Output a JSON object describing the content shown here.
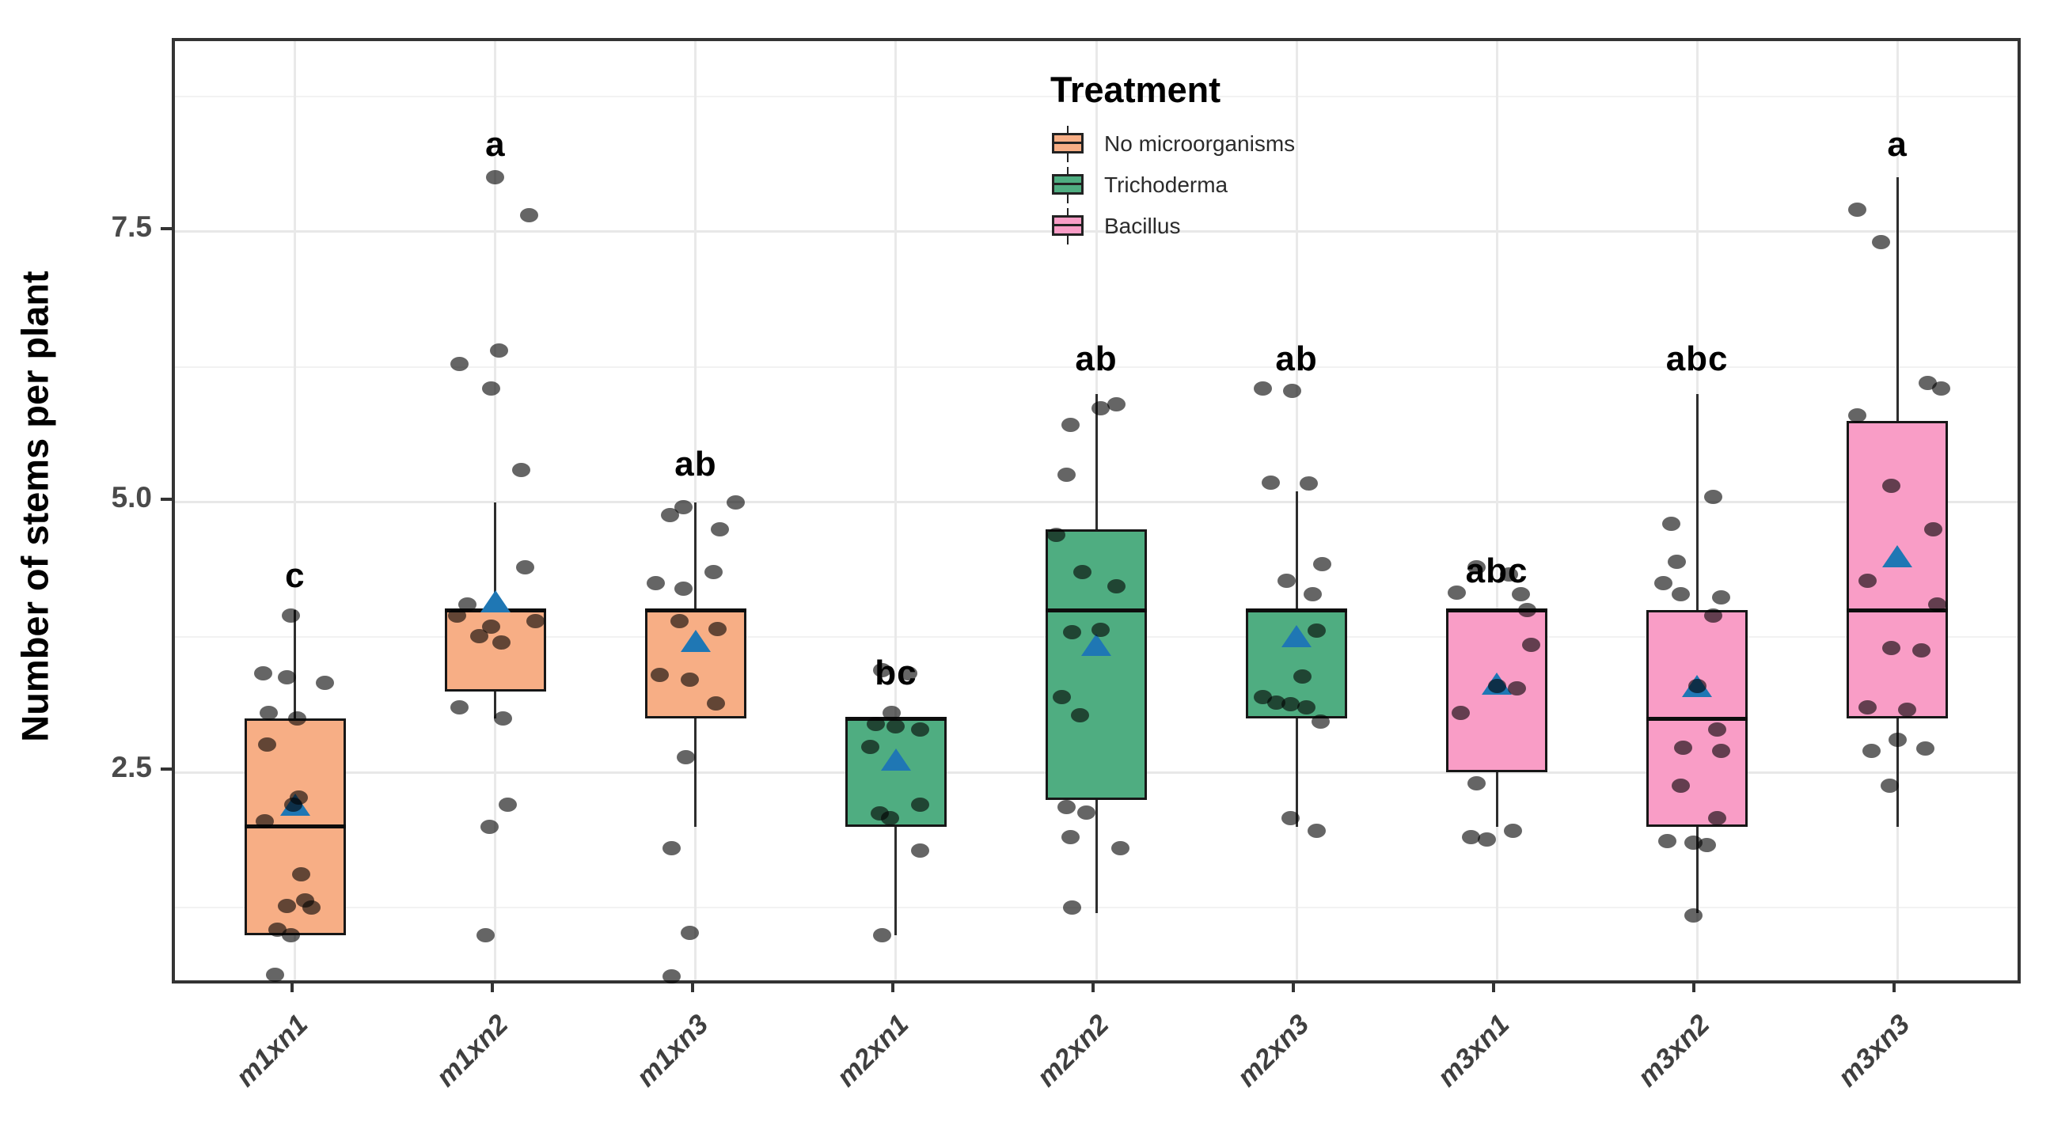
{
  "figure": {
    "y_axis": {
      "title": "Number of stems per plant",
      "tick_labels": [
        "2.5",
        "5.0",
        "7.5"
      ],
      "tick_values": [
        2.5,
        5.0,
        7.5
      ]
    },
    "legend": {
      "title": "Treatment",
      "items": [
        {
          "label": "No microorganisms",
          "color": "#F7AE85"
        },
        {
          "label": "Trichoderma",
          "color": "#4FAD81"
        },
        {
          "label": "Bacillus",
          "color": "#F99DC6"
        }
      ]
    }
  },
  "chart_data": {
    "type": "boxplot",
    "title": "",
    "xlabel": "",
    "ylabel": "Number of stems per plant",
    "ylim": [
      0.58,
      9.26
    ],
    "y_major_gridlines": [
      2.5,
      5.0,
      7.5
    ],
    "y_minor_gridlines": [
      1.25,
      3.75,
      6.25,
      8.75
    ],
    "grid": true,
    "legend_position": "inside-top-center",
    "legend_title": "Treatment",
    "mean_marker": {
      "shape": "triangle-up",
      "color": "#1f77b4"
    },
    "point_style": {
      "color": "#4a4a4a",
      "alpha": 0.85
    },
    "categories": [
      "m1xn1",
      "m1xn2",
      "m1xn3",
      "m2xn1",
      "m2xn2",
      "m2xn3",
      "m3xn1",
      "m3xn2",
      "m3xn3"
    ],
    "groups": [
      {
        "category": "m1xn1",
        "treatment": "No microorganisms",
        "letter": "c",
        "letter_y": 4.32,
        "q1": 1.0,
        "median": 2.0,
        "q3": 3.0,
        "whisker_low": 1.0,
        "whisker_high": 4.0,
        "mean": 2.2,
        "points": [
          [
            3.95,
            -0.02
          ],
          [
            3.42,
            -0.16
          ],
          [
            3.38,
            -0.04
          ],
          [
            3.33,
            0.15
          ],
          [
            3.05,
            -0.13
          ],
          [
            3.0,
            0.01
          ],
          [
            2.76,
            -0.14
          ],
          [
            2.27,
            0.02
          ],
          [
            2.2,
            -0.01
          ],
          [
            2.05,
            -0.15
          ],
          [
            1.56,
            0.03
          ],
          [
            1.32,
            0.05
          ],
          [
            1.27,
            -0.04
          ],
          [
            1.25,
            0.08
          ],
          [
            1.05,
            -0.09
          ],
          [
            1.0,
            -0.02
          ],
          [
            0.63,
            -0.1
          ]
        ]
      },
      {
        "category": "m1xn2",
        "treatment": "No microorganisms",
        "letter": "a",
        "letter_y": 8.3,
        "q1": 3.25,
        "median": 4.0,
        "q3": 4.0,
        "whisker_low": 3.0,
        "whisker_high": 5.0,
        "mean": 4.08,
        "points": [
          [
            8.0,
            0.0
          ],
          [
            7.65,
            0.17
          ],
          [
            6.4,
            0.02
          ],
          [
            6.28,
            -0.18
          ],
          [
            6.05,
            -0.02
          ],
          [
            5.3,
            0.13
          ],
          [
            4.4,
            0.15
          ],
          [
            4.05,
            -0.14
          ],
          [
            3.95,
            -0.19
          ],
          [
            3.9,
            0.2
          ],
          [
            3.85,
            -0.02
          ],
          [
            3.76,
            -0.08
          ],
          [
            3.7,
            0.03
          ],
          [
            3.1,
            -0.18
          ],
          [
            3.0,
            0.04
          ],
          [
            2.2,
            0.06
          ],
          [
            2.0,
            -0.03
          ],
          [
            1.0,
            -0.05
          ]
        ]
      },
      {
        "category": "m1xn3",
        "treatment": "No microorganisms",
        "letter": "ab",
        "letter_y": 5.35,
        "q1": 3.0,
        "median": 4.0,
        "q3": 4.0,
        "whisker_low": 2.0,
        "whisker_high": 5.0,
        "mean": 3.72,
        "points": [
          [
            5.0,
            0.2
          ],
          [
            4.95,
            -0.06
          ],
          [
            4.88,
            -0.13
          ],
          [
            4.75,
            0.12
          ],
          [
            4.35,
            0.09
          ],
          [
            4.25,
            -0.2
          ],
          [
            4.2,
            -0.06
          ],
          [
            3.9,
            -0.08
          ],
          [
            3.83,
            0.11
          ],
          [
            3.4,
            -0.18
          ],
          [
            3.36,
            -0.03
          ],
          [
            3.14,
            0.1
          ],
          [
            2.64,
            -0.05
          ],
          [
            1.8,
            -0.12
          ],
          [
            1.02,
            -0.03
          ],
          [
            0.62,
            -0.12
          ]
        ]
      },
      {
        "category": "m2xn1",
        "treatment": "Trichoderma",
        "letter": "bc",
        "letter_y": 3.42,
        "q1": 2.0,
        "median": 3.0,
        "q3": 3.0,
        "whisker_low": 1.0,
        "whisker_high": 3.0,
        "mean": 2.62,
        "points": [
          [
            3.45,
            -0.07
          ],
          [
            3.42,
            0.06
          ],
          [
            3.05,
            -0.02
          ],
          [
            2.95,
            -0.1
          ],
          [
            2.93,
            0.0
          ],
          [
            2.9,
            0.12
          ],
          [
            2.74,
            -0.13
          ],
          [
            2.2,
            0.12
          ],
          [
            2.12,
            -0.08
          ],
          [
            2.08,
            -0.03
          ],
          [
            1.78,
            0.12
          ],
          [
            1.0,
            -0.07
          ]
        ]
      },
      {
        "category": "m2xn2",
        "treatment": "Trichoderma",
        "letter": "ab",
        "letter_y": 6.32,
        "q1": 2.25,
        "median": 4.0,
        "q3": 4.75,
        "whisker_low": 1.2,
        "whisker_high": 6.0,
        "mean": 3.68,
        "points": [
          [
            5.9,
            0.1
          ],
          [
            5.87,
            0.02
          ],
          [
            5.71,
            -0.13
          ],
          [
            5.25,
            -0.15
          ],
          [
            4.7,
            -0.2
          ],
          [
            4.35,
            -0.07
          ],
          [
            4.22,
            0.1
          ],
          [
            3.82,
            0.02
          ],
          [
            3.8,
            -0.12
          ],
          [
            3.2,
            -0.17
          ],
          [
            3.03,
            -0.08
          ],
          [
            2.18,
            -0.15
          ],
          [
            2.13,
            -0.05
          ],
          [
            1.9,
            -0.13
          ],
          [
            1.8,
            0.12
          ],
          [
            1.25,
            -0.12
          ]
        ]
      },
      {
        "category": "m2xn3",
        "treatment": "Trichoderma",
        "letter": "ab",
        "letter_y": 6.32,
        "q1": 3.0,
        "median": 4.0,
        "q3": 4.0,
        "whisker_low": 2.0,
        "whisker_high": 5.1,
        "mean": 3.76,
        "points": [
          [
            6.05,
            -0.17
          ],
          [
            6.03,
            -0.02
          ],
          [
            5.18,
            -0.13
          ],
          [
            5.17,
            0.06
          ],
          [
            4.43,
            0.13
          ],
          [
            4.27,
            -0.05
          ],
          [
            4.15,
            0.08
          ],
          [
            3.81,
            0.1
          ],
          [
            3.39,
            0.03
          ],
          [
            3.2,
            -0.17
          ],
          [
            3.15,
            -0.1
          ],
          [
            3.13,
            -0.03
          ],
          [
            3.1,
            0.05
          ],
          [
            2.97,
            0.12
          ],
          [
            2.08,
            -0.03
          ],
          [
            1.96,
            0.1
          ]
        ]
      },
      {
        "category": "m3xn1",
        "treatment": "Bacillus",
        "letter": "abc",
        "letter_y": 4.36,
        "q1": 2.5,
        "median": 4.0,
        "q3": 4.0,
        "whisker_low": 2.0,
        "whisker_high": 4.0,
        "mean": 3.32,
        "points": [
          [
            4.4,
            -0.1
          ],
          [
            4.33,
            0.06
          ],
          [
            4.16,
            -0.2
          ],
          [
            4.15,
            0.12
          ],
          [
            4.0,
            0.15
          ],
          [
            3.68,
            0.17
          ],
          [
            3.3,
            0.0
          ],
          [
            3.28,
            0.1
          ],
          [
            3.05,
            -0.18
          ],
          [
            2.4,
            -0.1
          ],
          [
            1.96,
            0.08
          ],
          [
            1.9,
            -0.13
          ],
          [
            1.88,
            -0.05
          ]
        ]
      },
      {
        "category": "m3xn2",
        "treatment": "Bacillus",
        "letter": "abc",
        "letter_y": 6.32,
        "q1": 2.0,
        "median": 3.0,
        "q3": 4.0,
        "whisker_low": 1.2,
        "whisker_high": 6.0,
        "mean": 3.3,
        "points": [
          [
            5.05,
            0.08
          ],
          [
            4.8,
            -0.13
          ],
          [
            4.45,
            -0.1
          ],
          [
            4.25,
            -0.17
          ],
          [
            4.15,
            -0.08
          ],
          [
            4.12,
            0.12
          ],
          [
            3.95,
            0.08
          ],
          [
            3.3,
            0.0
          ],
          [
            2.9,
            0.1
          ],
          [
            2.73,
            -0.07
          ],
          [
            2.7,
            0.12
          ],
          [
            2.38,
            -0.08
          ],
          [
            2.08,
            0.1
          ],
          [
            1.87,
            -0.15
          ],
          [
            1.85,
            -0.02
          ],
          [
            1.83,
            0.05
          ],
          [
            1.18,
            -0.02
          ]
        ]
      },
      {
        "category": "m3xn3",
        "treatment": "Bacillus",
        "letter": "a",
        "letter_y": 8.3,
        "q1": 3.0,
        "median": 4.0,
        "q3": 5.75,
        "whisker_low": 2.0,
        "whisker_high": 8.0,
        "mean": 4.5,
        "points": [
          [
            7.7,
            -0.2
          ],
          [
            7.4,
            -0.08
          ],
          [
            6.1,
            0.15
          ],
          [
            6.05,
            0.22
          ],
          [
            5.8,
            -0.2
          ],
          [
            5.15,
            -0.03
          ],
          [
            4.75,
            0.18
          ],
          [
            4.27,
            -0.15
          ],
          [
            4.05,
            0.2
          ],
          [
            3.65,
            -0.03
          ],
          [
            3.63,
            0.12
          ],
          [
            3.1,
            -0.15
          ],
          [
            3.08,
            0.05
          ],
          [
            2.8,
            0.0
          ],
          [
            2.7,
            -0.13
          ],
          [
            2.72,
            0.14
          ],
          [
            2.38,
            -0.04
          ]
        ]
      }
    ]
  }
}
